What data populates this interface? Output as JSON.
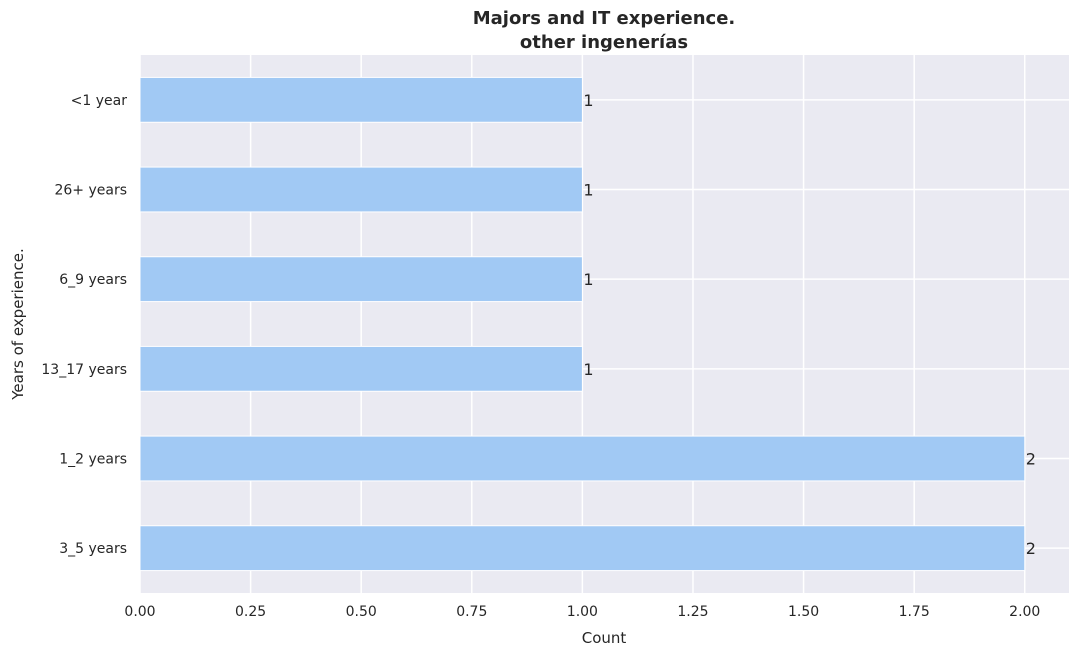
{
  "chart_data": {
    "type": "bar",
    "orientation": "horizontal",
    "title": [
      "Majors and IT experience.",
      "other ingenerías"
    ],
    "xlabel": "Count",
    "ylabel": "Years of experience.",
    "categories": [
      "<1 year",
      "26+ years",
      "6_9 years",
      "13_17 years",
      "1_2 years",
      "3_5 years"
    ],
    "values": [
      1,
      1,
      1,
      1,
      2,
      2
    ],
    "data_labels": [
      "1",
      "1",
      "1",
      "1",
      "2",
      "2"
    ],
    "xlim": [
      0,
      2.1
    ],
    "xticks": [
      0,
      0.25,
      0.5,
      0.75,
      1,
      1.25,
      1.5,
      1.75,
      2
    ],
    "xtick_labels": [
      "0.00",
      "0.25",
      "0.50",
      "0.75",
      "1.00",
      "1.25",
      "1.50",
      "1.75",
      "2.00"
    ],
    "grid": true,
    "colors": {
      "bar": "#a1c9f4",
      "background": "#eaeaf2",
      "grid": "#ffffff",
      "text": "#262626"
    }
  }
}
